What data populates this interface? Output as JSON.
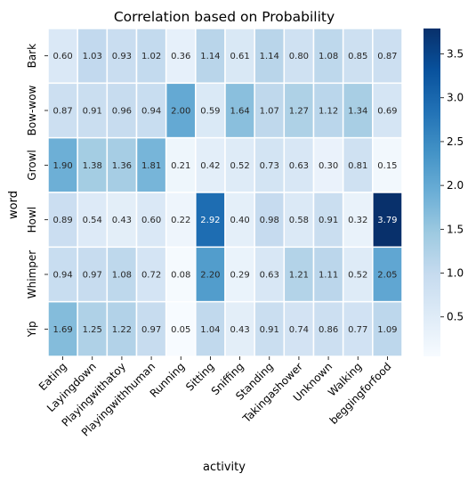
{
  "chart_data": {
    "type": "heatmap",
    "title": "Correlation based on Probability",
    "xlabel": "activity",
    "ylabel": "word",
    "x_categories": [
      "Eating",
      "Layingdown",
      "Playingwithatoy",
      "Playingwithhuman",
      "Running",
      "Sitting",
      "Sniffing",
      "Standing",
      "Takingashower",
      "Unknown",
      "Walking",
      "beggingforfood"
    ],
    "y_categories": [
      "Bark",
      "Bow-wow",
      "Growl",
      "Howl",
      "Whimper",
      "Yip"
    ],
    "values": [
      [
        0.6,
        1.03,
        0.93,
        1.02,
        0.36,
        1.14,
        0.61,
        1.14,
        0.8,
        1.08,
        0.85,
        0.87
      ],
      [
        0.87,
        0.91,
        0.96,
        0.94,
        2.0,
        0.59,
        1.64,
        1.07,
        1.27,
        1.12,
        1.34,
        0.69
      ],
      [
        1.9,
        1.38,
        1.36,
        1.81,
        0.21,
        0.42,
        0.52,
        0.73,
        0.63,
        0.3,
        0.81,
        0.15
      ],
      [
        0.89,
        0.54,
        0.43,
        0.6,
        0.22,
        2.92,
        0.4,
        0.98,
        0.58,
        0.91,
        0.32,
        3.79
      ],
      [
        0.94,
        0.97,
        1.08,
        0.72,
        0.08,
        2.2,
        0.29,
        0.63,
        1.21,
        1.11,
        0.52,
        2.05
      ],
      [
        1.69,
        1.25,
        1.22,
        0.97,
        0.05,
        1.04,
        0.43,
        0.91,
        0.74,
        0.86,
        0.77,
        1.09
      ]
    ],
    "value_format": "0.00",
    "colormap": "Blues",
    "color_range": [
      0.05,
      3.79
    ],
    "colorbar_ticks": [
      0.5,
      1.0,
      1.5,
      2.0,
      2.5,
      3.0,
      3.5
    ],
    "colorbar_tick_labels": [
      "0.5",
      "1.0",
      "1.5",
      "2.0",
      "2.5",
      "3.0",
      "3.5"
    ],
    "legend": "colorbar-right",
    "grid": false
  }
}
